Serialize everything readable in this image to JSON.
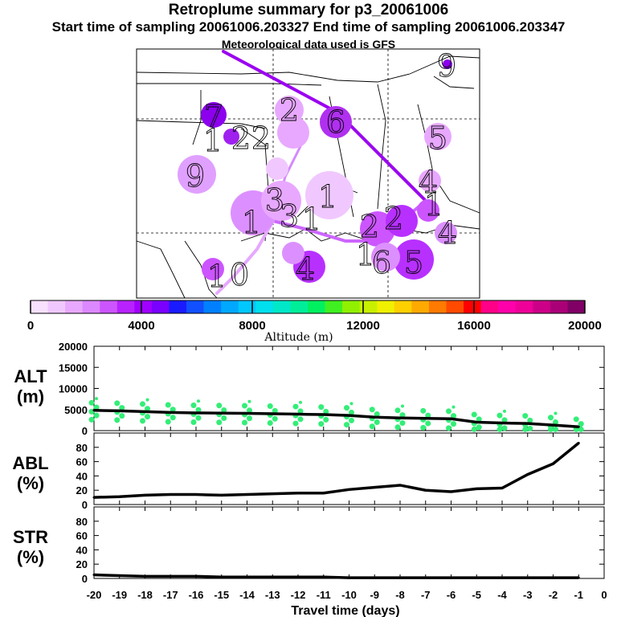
{
  "header": {
    "title": "Retroplume summary for p3_20061006",
    "sampling": "Start time of sampling 20061006.203327     End time of sampling 20061006.203347",
    "met": "Meteorological data used is GFS"
  },
  "colors": {
    "plume": "#9b00f0",
    "trace": "#cc66ff",
    "line": "#000000",
    "dots": "#33ee77",
    "colorbar": [
      "#f8e0ff",
      "#f0c8ff",
      "#e8a8ff",
      "#dc88ff",
      "#cc55ff",
      "#b822ff",
      "#a000ff",
      "#7a00ff",
      "#1a1aff",
      "#1050ff",
      "#0080ff",
      "#00a8ff",
      "#00c8ff",
      "#00e0ee",
      "#00e8c8",
      "#00ee99",
      "#00f060",
      "#40f020",
      "#90f000",
      "#c8f000",
      "#f0f000",
      "#ffd000",
      "#ffaa00",
      "#ff7a00",
      "#ff4a00",
      "#ff0000",
      "#ff0088",
      "#ff00aa",
      "#ee0099",
      "#cc0088",
      "#aa0077",
      "#800066"
    ]
  },
  "map": {
    "labels": [
      "9",
      "6",
      "2",
      "7",
      "1",
      "2",
      "2",
      "5",
      "9",
      "1",
      "4",
      "3",
      "1",
      "3",
      "1",
      "2",
      "2",
      "1",
      "6",
      "4",
      "1",
      "5",
      "4",
      "0",
      "1"
    ]
  },
  "colorbar": {
    "ticks": [
      "0",
      "4000",
      "8000",
      "12000",
      "16000",
      "20000"
    ],
    "label": "Altitude (m)"
  },
  "panels": {
    "alt": {
      "label_top": "ALT",
      "label_bottom": "(m)"
    },
    "abl": {
      "label_top": "ABL",
      "label_bottom": "(%)"
    },
    "str": {
      "label_top": "STR",
      "label_bottom": "(%)"
    }
  },
  "chart_data": [
    {
      "type": "line",
      "title": "ALT",
      "ylabel": "ALT (m)",
      "xlabel": "Travel time (days)",
      "xlim": [
        -20,
        0
      ],
      "ylim": [
        0,
        20000
      ],
      "yticks": [
        "20000",
        "15000",
        "10000",
        "5000",
        "0"
      ],
      "x": [
        -20,
        -19,
        -18,
        -17,
        -16,
        -15,
        -14,
        -13,
        -12,
        -11,
        -10,
        -9,
        -8,
        -7,
        -6,
        -5,
        -4,
        -3,
        -2,
        -1
      ],
      "values": [
        4800,
        4700,
        4500,
        4300,
        4200,
        4150,
        4100,
        4000,
        3900,
        3800,
        3600,
        3200,
        3000,
        2900,
        2800,
        2000,
        1800,
        1700,
        1300,
        900
      ]
    },
    {
      "type": "line",
      "title": "ABL",
      "ylabel": "ABL (%)",
      "xlim": [
        -20,
        0
      ],
      "ylim": [
        0,
        100
      ],
      "yticks": [
        "80",
        "60",
        "40",
        "20",
        "0"
      ],
      "x": [
        -20,
        -19,
        -18,
        -17,
        -16,
        -15,
        -14,
        -13,
        -12,
        -11,
        -10,
        -9,
        -8,
        -7,
        -6,
        -5,
        -4,
        -3,
        -2,
        -1
      ],
      "values": [
        10,
        11,
        13,
        14,
        14,
        13,
        14,
        15,
        16,
        16,
        21,
        24,
        27,
        20,
        18,
        22,
        23,
        42,
        57,
        86
      ]
    },
    {
      "type": "line",
      "title": "STR",
      "ylabel": "STR (%)",
      "xlabel": "Travel time (days)",
      "xlim": [
        -20,
        0
      ],
      "ylim": [
        0,
        100
      ],
      "yticks": [
        "80",
        "60",
        "40",
        "20",
        "0"
      ],
      "xticks": [
        "-20",
        "-19",
        "-18",
        "-17",
        "-16",
        "-15",
        "-14",
        "-13",
        "-12",
        "-11",
        "-10",
        "-9",
        "-8",
        "-7",
        "-6",
        "-5",
        "-4",
        "-3",
        "-2",
        "-1",
        "0"
      ],
      "x": [
        -20,
        -19,
        -18,
        -17,
        -16,
        -15,
        -14,
        -13,
        -12,
        -11,
        -10,
        -9,
        -8,
        -7,
        -6,
        -5,
        -4,
        -3,
        -2,
        -1
      ],
      "values": [
        5,
        4,
        3,
        3,
        3,
        2,
        2,
        2,
        2,
        2,
        1,
        1,
        1,
        1,
        1,
        1,
        1,
        1,
        1,
        1
      ]
    }
  ]
}
